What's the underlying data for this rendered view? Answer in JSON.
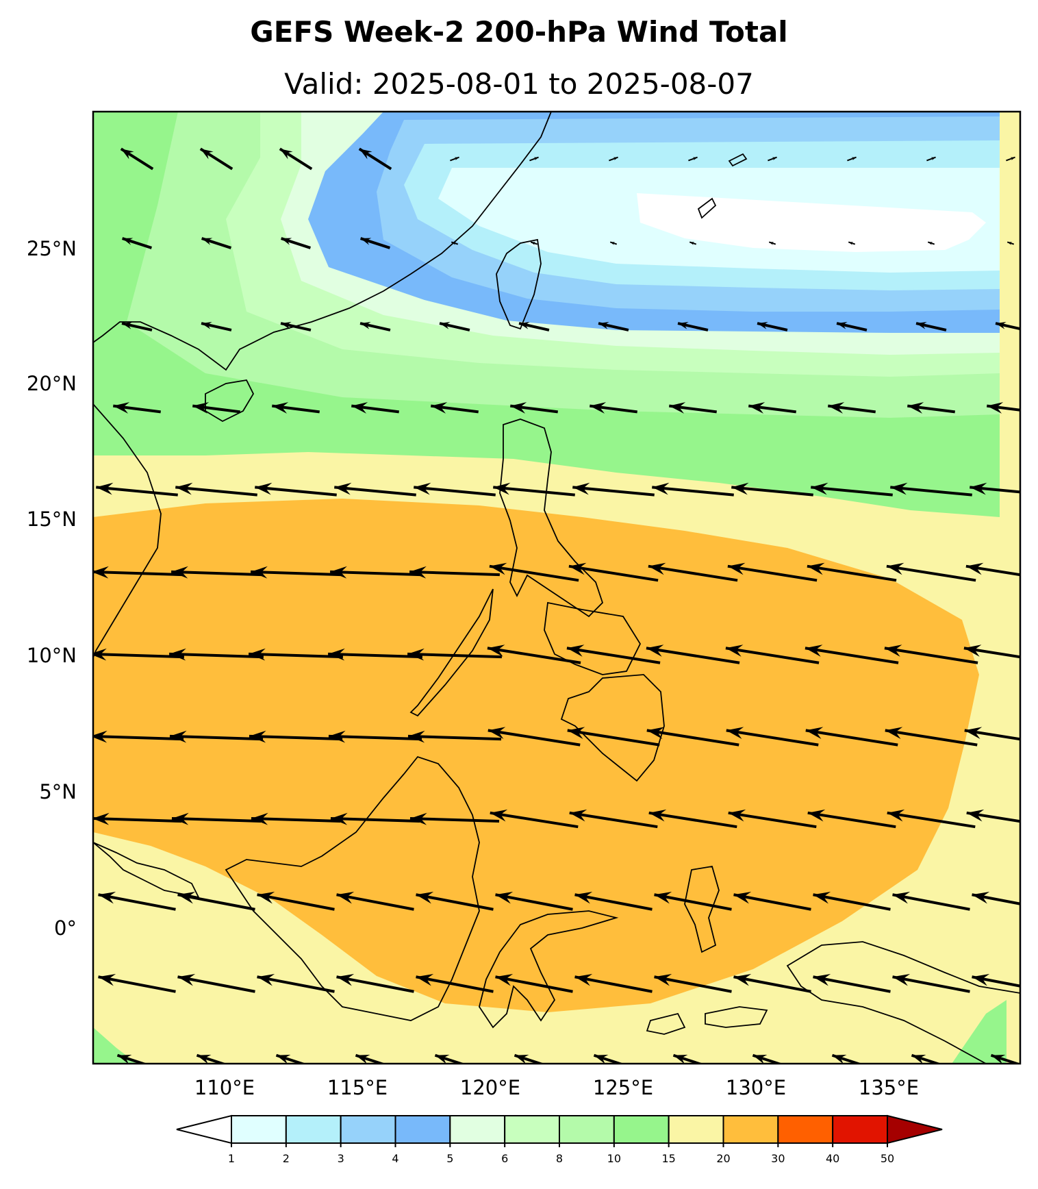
{
  "title": "GEFS Week-2 200-hPa Wind Total",
  "subtitle": "Valid: 2025-08-01 to 2025-08-07",
  "map": {
    "lat_labels": [
      "25°N",
      "20°N",
      "15°N",
      "10°N",
      "5°N",
      "0°"
    ],
    "lon_labels": [
      "110°E",
      "115°E",
      "120°E",
      "125°E",
      "130°E",
      "135°E"
    ],
    "lon_range_deg_e": [
      105.5,
      140
    ],
    "lat_range_deg": [
      -4.8,
      30
    ],
    "variable": "200-hPa wind speed (shaded) and wind vectors"
  },
  "colorbar": {
    "levels": [
      "1",
      "2",
      "3",
      "4",
      "5",
      "6",
      "8",
      "10",
      "15",
      "20",
      "30",
      "40",
      "50"
    ],
    "colors": [
      "#e0ffff",
      "#b4f0fa",
      "#96d2fa",
      "#78b9fa",
      "#e1ffe1",
      "#c8ffbe",
      "#b4faaa",
      "#96f58c",
      "#faf5a5",
      "#ffbe3c",
      "#ff6000",
      "#e11400",
      "#a50000"
    ],
    "under_color": "#ffffff",
    "over_color": "#a50000"
  },
  "colors": {
    "coastline": "#000000",
    "vector": "#000000",
    "frame": "#000000"
  }
}
